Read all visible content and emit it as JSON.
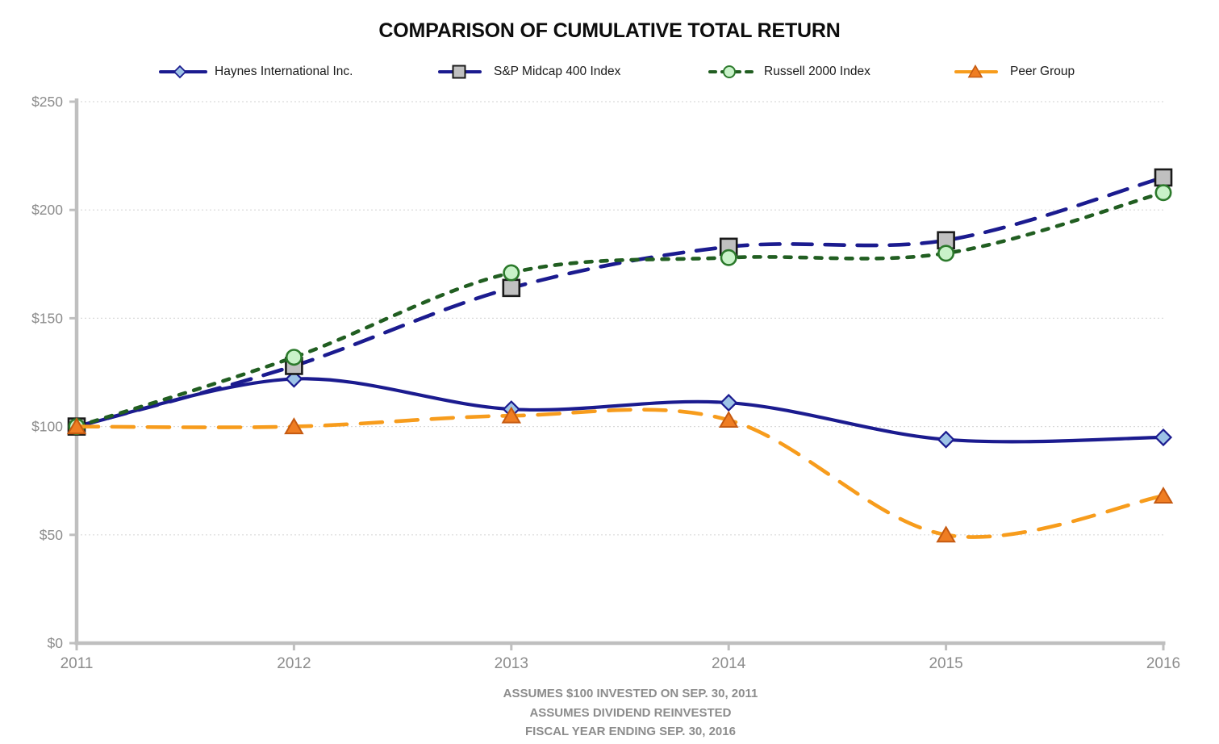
{
  "title": "COMPARISON OF CUMULATIVE TOTAL RETURN",
  "footer": {
    "line1": "ASSUMES $100 INVESTED ON SEP. 30, 2011",
    "line2": "ASSUMES DIVIDEND REINVESTED",
    "line3": "FISCAL YEAR ENDING SEP. 30, 2016"
  },
  "chart_data": {
    "type": "line",
    "categories": [
      "2011",
      "2012",
      "2013",
      "2014",
      "2015",
      "2016"
    ],
    "series": [
      {
        "name": "Haynes International Inc.",
        "values": [
          100,
          122,
          108,
          111,
          94,
          95
        ],
        "color": "#1b1b8f",
        "dash": "solid",
        "marker": "diamond",
        "marker_fill": "#9dc3e6",
        "marker_stroke": "#1b1b8f"
      },
      {
        "name": "S&P Midcap 400 Index",
        "values": [
          100,
          128,
          164,
          183,
          186,
          215
        ],
        "color": "#1b1b8f",
        "dash": "long-dash",
        "marker": "square",
        "marker_fill": "#c0c0c0",
        "marker_stroke": "#1a1a1a"
      },
      {
        "name": "Russell 2000 Index",
        "values": [
          100,
          132,
          171,
          178,
          180,
          208
        ],
        "color": "#215e21",
        "dash": "short-dash",
        "marker": "circle",
        "marker_fill": "#c9f2c9",
        "marker_stroke": "#2c7a2c"
      },
      {
        "name": "Peer Group",
        "values": [
          100,
          100,
          105,
          103,
          50,
          68
        ],
        "color": "#f79c1c",
        "dash": "long-dash",
        "marker": "triangle",
        "marker_fill": "#ef7d22",
        "marker_stroke": "#c55a11"
      }
    ],
    "title": "COMPARISON OF CUMULATIVE TOTAL RETURN",
    "xlabel": "",
    "ylabel": "",
    "y_tick_labels": [
      "$0",
      "$50",
      "$100",
      "$150",
      "$200",
      "$250"
    ],
    "ylim": [
      0,
      250
    ],
    "grid": true,
    "legend_position": "top",
    "axis_color": "#bfbfbf",
    "grid_color": "#d9d9d9",
    "tick_label_color": "#8c8c8c"
  }
}
